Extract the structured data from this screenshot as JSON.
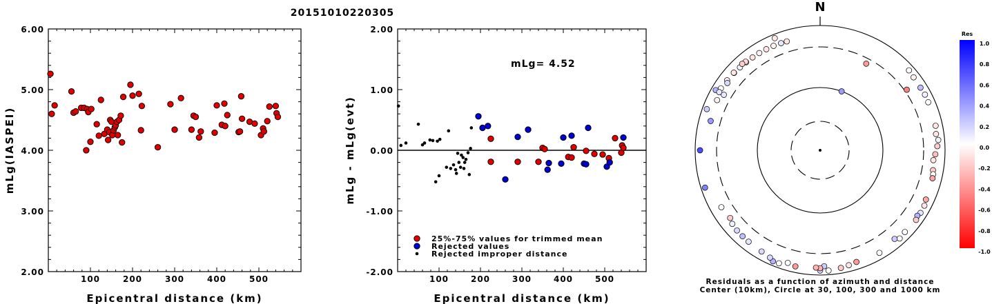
{
  "title": "20151010220305",
  "chart_data": [
    {
      "type": "scatter",
      "xlabel": "Epicentral distance (km)",
      "ylabel": "mLg(IASPEI)",
      "xlim": [
        0,
        600
      ],
      "ylim": [
        2.0,
        6.0
      ],
      "xticks": [
        "100",
        "200",
        "300",
        "400",
        "500"
      ],
      "yticks": [
        "2.00",
        "3.00",
        "4.00",
        "5.00",
        "6.00"
      ],
      "series": [
        {
          "color": "#dd0000",
          "points": [
            [
              5,
              5.26
            ],
            [
              8,
              4.6
            ],
            [
              15,
              4.74
            ],
            [
              55,
              4.97
            ],
            [
              60,
              4.62
            ],
            [
              65,
              4.64
            ],
            [
              78,
              4.7
            ],
            [
              85,
              4.7
            ],
            [
              90,
              4.0
            ],
            [
              92,
              4.68
            ],
            [
              95,
              4.63
            ],
            [
              100,
              4.14
            ],
            [
              102,
              4.68
            ],
            [
              115,
              4.43
            ],
            [
              120,
              4.24
            ],
            [
              125,
              4.83
            ],
            [
              133,
              4.27
            ],
            [
              140,
              4.34
            ],
            [
              142,
              4.17
            ],
            [
              145,
              4.3
            ],
            [
              147,
              4.5
            ],
            [
              150,
              4.47
            ],
            [
              152,
              4.25
            ],
            [
              155,
              4.33
            ],
            [
              158,
              4.38
            ],
            [
              160,
              4.41
            ],
            [
              163,
              4.47
            ],
            [
              165,
              4.25
            ],
            [
              168,
              4.5
            ],
            [
              172,
              4.57
            ],
            [
              175,
              4.13
            ],
            [
              178,
              4.88
            ],
            [
              195,
              5.08
            ],
            [
              200,
              4.9
            ],
            [
              215,
              4.93
            ],
            [
              220,
              4.33
            ],
            [
              222,
              4.73
            ],
            [
              260,
              4.05
            ],
            [
              290,
              4.76
            ],
            [
              300,
              4.34
            ],
            [
              315,
              4.86
            ],
            [
              340,
              4.34
            ],
            [
              345,
              4.57
            ],
            [
              350,
              4.55
            ],
            [
              358,
              4.21
            ],
            [
              362,
              4.31
            ],
            [
              395,
              4.29
            ],
            [
              400,
              4.74
            ],
            [
              412,
              4.42
            ],
            [
              418,
              4.77
            ],
            [
              420,
              4.4
            ],
            [
              425,
              4.58
            ],
            [
              452,
              4.3
            ],
            [
              455,
              4.31
            ],
            [
              458,
              4.89
            ],
            [
              460,
              4.52
            ],
            [
              478,
              4.47
            ],
            [
              490,
              4.44
            ],
            [
              505,
              4.25
            ],
            [
              510,
              4.36
            ],
            [
              512,
              4.31
            ],
            [
              520,
              4.48
            ],
            [
              525,
              4.72
            ],
            [
              540,
              4.73
            ],
            [
              542,
              4.61
            ],
            [
              545,
              4.55
            ]
          ]
        }
      ]
    },
    {
      "type": "scatter",
      "xlabel": "Epicentral distance (km)",
      "ylabel": "mLg - mLg(evt)",
      "annotation": "mLg= 4.52",
      "xlim": [
        0,
        600
      ],
      "ylim": [
        -2.0,
        2.0
      ],
      "xticks": [
        "100",
        "200",
        "300",
        "400",
        "500"
      ],
      "yticks": [
        "-2.00",
        "-1.00",
        "0.00",
        "1.00",
        "2.00"
      ],
      "legend": [
        {
          "label": "25%-75% values for trimmed mean",
          "color": "#dd0000"
        },
        {
          "label": "Rejected values",
          "color": "#0000cc"
        },
        {
          "label": "Rejected improper distance",
          "color": "#000000"
        }
      ],
      "series": [
        {
          "name": "25%-75% values for trimmed mean",
          "color": "#dd0000",
          "points": [
            [
              225,
              0.19
            ],
            [
              225,
              -0.19
            ],
            [
              290,
              -0.19
            ],
            [
              340,
              -0.19
            ],
            [
              350,
              0.04
            ],
            [
              355,
              0.02
            ],
            [
              412,
              -0.11
            ],
            [
              420,
              -0.12
            ],
            [
              425,
              0.05
            ],
            [
              455,
              -0.01
            ],
            [
              475,
              -0.06
            ],
            [
              495,
              -0.07
            ],
            [
              510,
              -0.13
            ],
            [
              525,
              0.2
            ],
            [
              540,
              -0.04
            ],
            [
              542,
              0.08
            ],
            [
              545,
              0.04
            ]
          ]
        },
        {
          "name": "Rejected values",
          "color": "#0000cc",
          "points": [
            [
              195,
              0.56
            ],
            [
              205,
              0.37
            ],
            [
              218,
              0.4
            ],
            [
              260,
              -0.48
            ],
            [
              290,
              0.22
            ],
            [
              315,
              0.34
            ],
            [
              362,
              -0.32
            ],
            [
              365,
              -0.21
            ],
            [
              395,
              -0.22
            ],
            [
              400,
              0.21
            ],
            [
              420,
              0.24
            ],
            [
              450,
              -0.22
            ],
            [
              455,
              -0.23
            ],
            [
              460,
              0.37
            ],
            [
              505,
              -0.27
            ],
            [
              512,
              -0.2
            ],
            [
              545,
              0.21
            ]
          ]
        },
        {
          "name": "Rejected improper distance",
          "color": "#000000",
          "points": [
            [
              2,
              0.73
            ],
            [
              8,
              0.08
            ],
            [
              20,
              0.12
            ],
            [
              50,
              0.43
            ],
            [
              60,
              0.09
            ],
            [
              65,
              0.12
            ],
            [
              78,
              0.17
            ],
            [
              85,
              0.16
            ],
            [
              92,
              -0.52
            ],
            [
              96,
              0.15
            ],
            [
              100,
              -0.42
            ],
            [
              102,
              0.18
            ],
            [
              118,
              -0.28
            ],
            [
              123,
              0.32
            ],
            [
              128,
              -0.3
            ],
            [
              135,
              -0.24
            ],
            [
              140,
              -0.32
            ],
            [
              142,
              -0.38
            ],
            [
              145,
              -0.05
            ],
            [
              148,
              -0.2
            ],
            [
              152,
              -0.28
            ],
            [
              154,
              -0.08
            ],
            [
              158,
              -0.12
            ],
            [
              160,
              -0.3
            ],
            [
              162,
              -0.2
            ],
            [
              165,
              -0.15
            ],
            [
              170,
              -0.04
            ],
            [
              173,
              -0.4
            ],
            [
              176,
              0.03
            ],
            [
              178,
              0.37
            ]
          ]
        }
      ]
    }
  ],
  "polar": {
    "north_label": "N",
    "caption_line1": "Residuals as a function of azimuth and distance",
    "caption_line2": "Center (10km), Circle at 30, 100, 300 and 1000 km",
    "points": [
      [
        176,
        790,
        0.0
      ],
      [
        200,
        775,
        0.0
      ],
      [
        180,
        775,
        0.15
      ],
      [
        203,
        790,
        0.3
      ],
      [
        338,
        805,
        -0.1
      ],
      [
        300,
        780,
        0.3
      ],
      [
        290,
        780,
        0.2
      ],
      [
        302,
        640,
        0.0
      ],
      [
        307,
        620,
        -0.05
      ],
      [
        312,
        600,
        0.0
      ],
      [
        316,
        585,
        0.05
      ],
      [
        320,
        575,
        0.0
      ],
      [
        324,
        570,
        -0.1
      ],
      [
        328,
        565,
        -0.05
      ],
      [
        332,
        560,
        -0.1
      ],
      [
        336,
        555,
        -0.05
      ],
      [
        340,
        545,
        0.1
      ],
      [
        343,
        540,
        -0.1
      ],
      [
        320,
        600,
        -0.15
      ],
      [
        318,
        620,
        -0.2
      ],
      [
        300,
        620,
        0.1
      ],
      [
        296,
        560,
        -0.05
      ],
      [
        306,
        560,
        0.15
      ],
      [
        312,
        610,
        -0.1
      ],
      [
        48,
        740,
        0.0
      ],
      [
        52,
        700,
        -0.05
      ],
      [
        58,
        690,
        0.25
      ],
      [
        62,
        705,
        0.05
      ],
      [
        66,
        690,
        0.0
      ],
      [
        78,
        680,
        -0.1
      ],
      [
        82,
        640,
        -0.1
      ],
      [
        92,
        580,
        -0.25
      ],
      [
        95,
        530,
        -0.1
      ],
      [
        100,
        560,
        -0.2
      ],
      [
        102,
        590,
        0.0
      ],
      [
        88,
        650,
        -0.2
      ],
      [
        85,
        700,
        0.05
      ],
      [
        28,
        260,
        -0.4
      ],
      [
        104,
        600,
        -0.35
      ],
      [
        115,
        630,
        -0.35
      ],
      [
        118,
        680,
        -0.1
      ],
      [
        122,
        690,
        0.1
      ],
      [
        124,
        650,
        0.3
      ],
      [
        126,
        700,
        -0.2
      ],
      [
        134,
        670,
        0.0
      ],
      [
        138,
        710,
        0.0
      ],
      [
        140,
        600,
        0.2
      ],
      [
        150,
        700,
        0.0
      ],
      [
        162,
        660,
        -0.4
      ],
      [
        166,
        700,
        -0.1
      ],
      [
        170,
        740,
        -0.2
      ],
      [
        178,
        610,
        0.2
      ],
      [
        180,
        680,
        -0.3
      ],
      [
        182,
        660,
        -0.3
      ],
      [
        192,
        710,
        -0.4
      ],
      [
        196,
        650,
        0.0
      ],
      [
        205,
        700,
        0.15
      ],
      [
        210,
        640,
        0.15
      ],
      [
        218,
        610,
        0.1
      ],
      [
        222,
        600,
        0.25
      ],
      [
        226,
        590,
        0.15
      ],
      [
        230,
        560,
        0.05
      ],
      [
        233,
        500,
        -0.2
      ],
      [
        240,
        540,
        0.0
      ],
      [
        252,
        800,
        0.5
      ],
      [
        270,
        760,
        0.7
      ],
      [
        285,
        520,
        0.4
      ],
      [
        300,
        460,
        0.1
      ],
      [
        55,
        340,
        -0.5
      ],
      [
        20,
        100,
        0.4
      ]
    ]
  },
  "colorbar": {
    "title": "Res",
    "labels": [
      "1.0",
      "0.8",
      "0.6",
      "0.4",
      "0.2",
      "0.0",
      "-0.2",
      "-0.4",
      "-0.6",
      "-0.8",
      "-1.0"
    ]
  }
}
